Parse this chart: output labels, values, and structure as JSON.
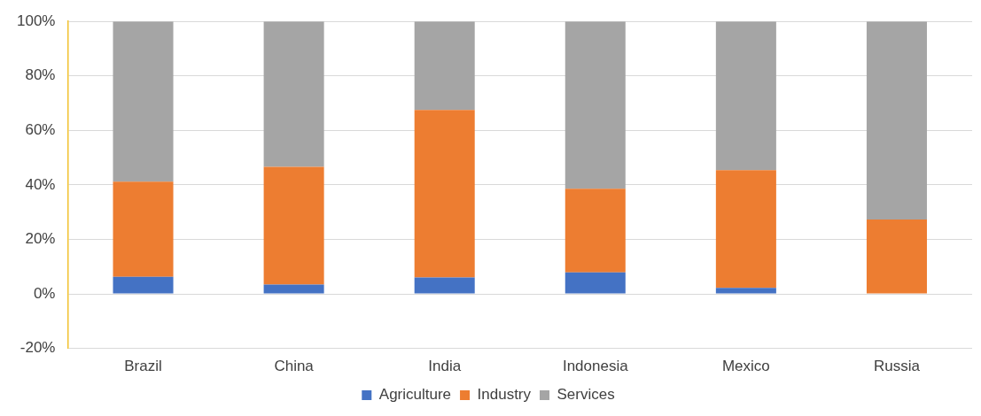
{
  "chart_data": {
    "type": "bar",
    "stacked": true,
    "categories": [
      "Brazil",
      "China",
      "India",
      "Indonesia",
      "Mexico",
      "Russia"
    ],
    "series": [
      {
        "name": "Agriculture",
        "color": "#4472c4",
        "values": [
          6.3,
          3.4,
          6,
          7.9,
          2.2,
          0
        ]
      },
      {
        "name": "Industry",
        "color": "#ed7d31",
        "values": [
          34.9,
          43.2,
          61.5,
          30.7,
          43.2,
          27.3
        ]
      },
      {
        "name": "Services",
        "color": "#a5a5a5",
        "values": [
          58.8,
          53.4,
          32.5,
          61.4,
          54.6,
          72.7
        ]
      }
    ],
    "ylim": [
      -20,
      100
    ],
    "yticks": [
      {
        "value": -20,
        "label": "-20%"
      },
      {
        "value": 0,
        "label": "0%"
      },
      {
        "value": 20,
        "label": "20%"
      },
      {
        "value": 40,
        "label": "40%"
      },
      {
        "value": 60,
        "label": "60%"
      },
      {
        "value": 80,
        "label": "80%"
      },
      {
        "value": 100,
        "label": "100%"
      }
    ],
    "grid": "y",
    "legend": "bottom"
  }
}
